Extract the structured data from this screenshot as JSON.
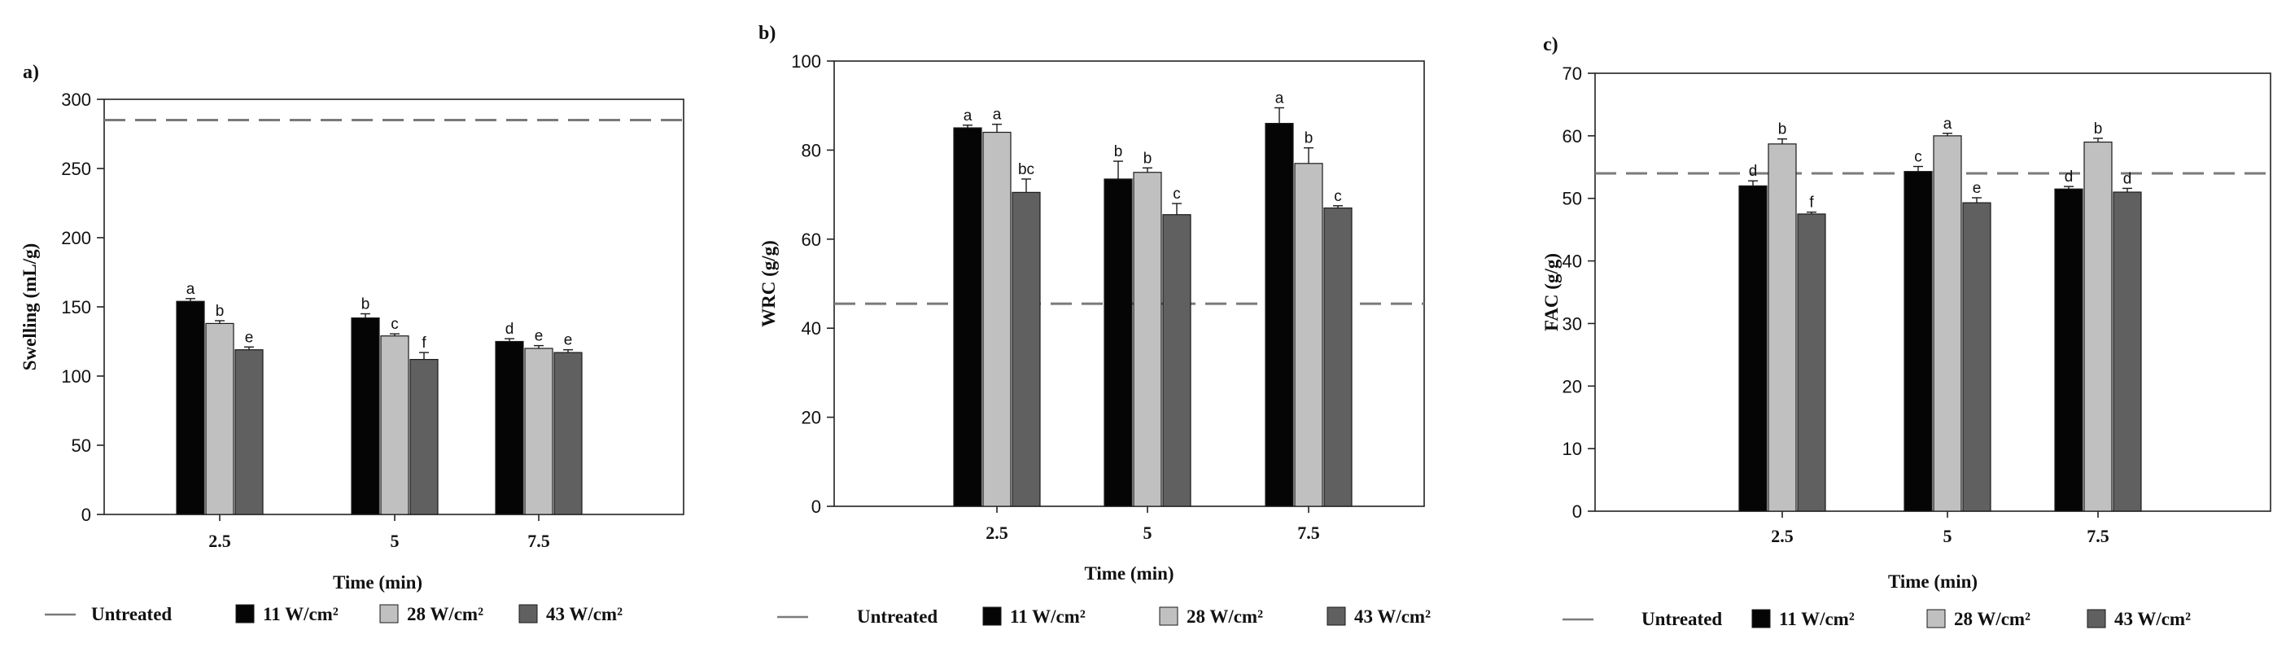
{
  "colors": {
    "series": [
      "#050505",
      "#c0c0c0",
      "#606060"
    ],
    "untreated_line": "#7a7a7a",
    "axis": "#222222"
  },
  "chart_data": [
    {
      "panel": "a)",
      "type": "bar",
      "title": "",
      "xlabel": "Time (min)",
      "ylabel": "Swelling (mL/g)",
      "ylim": [
        0,
        300
      ],
      "yticks": [
        0,
        50,
        100,
        150,
        200,
        250,
        300
      ],
      "categories": [
        "2.5",
        "5",
        "7.5"
      ],
      "reference_line": {
        "name": "Untreated",
        "value": 285
      },
      "series": [
        {
          "name": "11 W/cm²",
          "values": [
            154,
            142,
            125
          ],
          "errors": [
            2,
            3,
            2
          ],
          "letters": [
            "a",
            "b",
            "d"
          ]
        },
        {
          "name": "28 W/cm²",
          "values": [
            138,
            129,
            120
          ],
          "errors": [
            2,
            1.5,
            2
          ],
          "letters": [
            "b",
            "c",
            "e"
          ]
        },
        {
          "name": "43 W/cm²",
          "values": [
            119,
            112,
            117
          ],
          "errors": [
            2,
            5,
            2
          ],
          "letters": [
            "e",
            "f",
            "e"
          ]
        }
      ],
      "grid": false,
      "legend_position": "bottom"
    },
    {
      "panel": "b)",
      "type": "bar",
      "title": "",
      "xlabel": "Time (min)",
      "ylabel": "WRC (g/g)",
      "ylim": [
        0,
        100
      ],
      "yticks": [
        0,
        20,
        40,
        60,
        80,
        100
      ],
      "categories": [
        "2.5",
        "5",
        "7.5"
      ],
      "reference_line": {
        "name": "Untreated",
        "value": 45.5
      },
      "series": [
        {
          "name": "11 W/cm²",
          "values": [
            85,
            73.5,
            86
          ],
          "errors": [
            0.6,
            4,
            3.5
          ],
          "letters": [
            "a",
            "b",
            "a"
          ]
        },
        {
          "name": "28 W/cm²",
          "values": [
            84,
            75,
            77
          ],
          "errors": [
            1.8,
            1,
            3.5
          ],
          "letters": [
            "a",
            "b",
            "b"
          ]
        },
        {
          "name": "43 W/cm²",
          "values": [
            70.5,
            65.5,
            67
          ],
          "errors": [
            3,
            2.5,
            0.5
          ],
          "letters": [
            "bc",
            "c",
            "c"
          ]
        }
      ],
      "grid": false,
      "legend_position": "bottom"
    },
    {
      "panel": "c)",
      "type": "bar",
      "title": "",
      "xlabel": "Time (min)",
      "ylabel": "FAC (g/g)",
      "ylim": [
        0,
        70
      ],
      "yticks": [
        0,
        10,
        20,
        30,
        40,
        50,
        60,
        70
      ],
      "categories": [
        "2.5",
        "5",
        "7.5"
      ],
      "reference_line": {
        "name": "Untreated",
        "value": 54
      },
      "series": [
        {
          "name": "11 W/cm²",
          "values": [
            52,
            54.3,
            51.5
          ],
          "errors": [
            0.8,
            0.8,
            0.4
          ],
          "letters": [
            "d",
            "c",
            "d"
          ]
        },
        {
          "name": "28 W/cm²",
          "values": [
            58.7,
            60,
            59
          ],
          "errors": [
            0.8,
            0.4,
            0.6
          ],
          "letters": [
            "b",
            "a",
            "b"
          ]
        },
        {
          "name": "43 W/cm²",
          "values": [
            47.5,
            49.3,
            51
          ],
          "errors": [
            0.3,
            0.8,
            0.6
          ],
          "letters": [
            "f",
            "e",
            "d"
          ]
        }
      ],
      "grid": false,
      "legend_position": "bottom"
    }
  ]
}
